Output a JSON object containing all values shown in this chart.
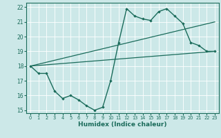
{
  "xlabel": "Humidex (Indice chaleur)",
  "xlim": [
    -0.5,
    23.5
  ],
  "ylim": [
    14.8,
    22.3
  ],
  "xticks": [
    0,
    1,
    2,
    3,
    4,
    5,
    6,
    7,
    8,
    9,
    10,
    11,
    12,
    13,
    14,
    15,
    16,
    17,
    18,
    19,
    20,
    21,
    22,
    23
  ],
  "yticks": [
    15,
    16,
    17,
    18,
    19,
    20,
    21,
    22
  ],
  "bg_color": "#cce8e8",
  "line_color": "#1a6b5a",
  "grid_color": "#ffffff",
  "line1_x": [
    0,
    1,
    2,
    3,
    4,
    5,
    6,
    7,
    8,
    9,
    10,
    11,
    12,
    13,
    14,
    15,
    16,
    17,
    18,
    19,
    20,
    21,
    22,
    23
  ],
  "line1_y": [
    18.0,
    17.5,
    17.5,
    16.3,
    15.8,
    16.0,
    15.7,
    15.3,
    15.0,
    15.2,
    17.0,
    19.6,
    21.9,
    21.4,
    21.2,
    21.1,
    21.7,
    21.9,
    21.4,
    20.9,
    19.6,
    19.4,
    19.0,
    19.0
  ],
  "line2_x": [
    0,
    23
  ],
  "line2_y": [
    18.0,
    19.0
  ],
  "line3_x": [
    0,
    23
  ],
  "line3_y": [
    18.0,
    21.0
  ]
}
